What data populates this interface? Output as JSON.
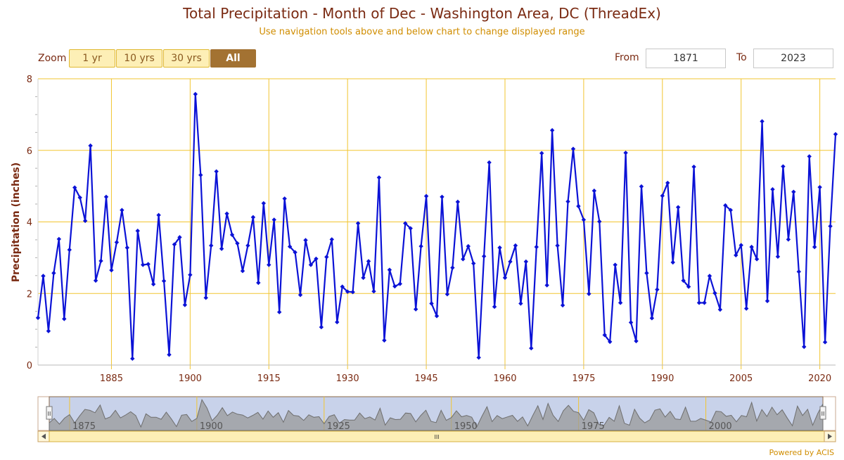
{
  "header": {
    "title": "Total Precipitation - Month of Dec - Washington Area, DC (ThreadEx)",
    "subtitle": "Use navigation tools above and below chart to change displayed range"
  },
  "zoom": {
    "label": "Zoom",
    "buttons": [
      "1 yr",
      "10 yrs",
      "30 yrs",
      "All"
    ],
    "active": "All"
  },
  "range": {
    "from_label": "From",
    "from_value": "1871",
    "to_label": "To",
    "to_value": "2023"
  },
  "navigator": {
    "tick_labels": [
      "1875",
      "1900",
      "1925",
      "1950",
      "1975",
      "2000"
    ],
    "handle_glyph": "II",
    "scroll_glyph": "III"
  },
  "footer": {
    "credit": "Powered by ACIS"
  },
  "colors": {
    "series": "#0b12d6",
    "grid": "#f2c530",
    "axis_text": "#7a2a12",
    "navigator_fill": "#c8d2ea",
    "navigator_area": "#999999"
  },
  "chart_data": {
    "type": "line",
    "title": "Total Precipitation - Month of Dec - Washington Area, DC (ThreadEx)",
    "xlabel": "",
    "ylabel": "Precipitation (inches)",
    "xlim": [
      1871,
      2023
    ],
    "ylim": [
      0,
      8
    ],
    "x_ticks": [
      1885,
      1900,
      1915,
      1930,
      1945,
      1960,
      1975,
      1990,
      2005,
      2020
    ],
    "y_ticks": [
      0,
      2,
      4,
      6,
      8
    ],
    "grid": true,
    "x": [
      1871,
      1872,
      1873,
      1874,
      1875,
      1876,
      1877,
      1878,
      1879,
      1880,
      1881,
      1882,
      1883,
      1884,
      1885,
      1886,
      1887,
      1888,
      1889,
      1890,
      1891,
      1892,
      1893,
      1894,
      1895,
      1896,
      1897,
      1898,
      1899,
      1900,
      1901,
      1902,
      1903,
      1904,
      1905,
      1906,
      1907,
      1908,
      1909,
      1910,
      1911,
      1912,
      1913,
      1914,
      1915,
      1916,
      1917,
      1918,
      1919,
      1920,
      1921,
      1922,
      1923,
      1924,
      1925,
      1926,
      1927,
      1928,
      1929,
      1930,
      1931,
      1932,
      1933,
      1934,
      1935,
      1936,
      1937,
      1938,
      1939,
      1940,
      1941,
      1942,
      1943,
      1944,
      1945,
      1946,
      1947,
      1948,
      1949,
      1950,
      1951,
      1952,
      1953,
      1954,
      1955,
      1956,
      1957,
      1958,
      1959,
      1960,
      1961,
      1962,
      1963,
      1964,
      1965,
      1966,
      1967,
      1968,
      1969,
      1970,
      1971,
      1972,
      1973,
      1974,
      1975,
      1976,
      1977,
      1978,
      1979,
      1980,
      1981,
      1982,
      1983,
      1984,
      1985,
      1986,
      1987,
      1988,
      1989,
      1990,
      1991,
      1992,
      1993,
      1994,
      1995,
      1996,
      1997,
      1998,
      1999,
      2000,
      2001,
      2002,
      2003,
      2004,
      2005,
      2006,
      2007,
      2008,
      2009,
      2010,
      2011,
      2012,
      2013,
      2014,
      2015,
      2016,
      2017,
      2018,
      2019,
      2020,
      2021,
      2022,
      2023
    ],
    "series": [
      {
        "values": [
          1.32,
          2.49,
          0.95,
          2.57,
          3.52,
          1.29,
          3.22,
          4.96,
          4.68,
          4.03,
          6.13,
          2.36,
          2.91,
          4.7,
          2.65,
          3.43,
          4.33,
          3.28,
          0.18,
          3.75,
          2.8,
          2.82,
          2.26,
          4.19,
          2.35,
          0.29,
          3.37,
          3.57,
          1.68,
          2.52,
          7.57,
          5.31,
          1.88,
          3.34,
          5.41,
          3.25,
          4.23,
          3.64,
          3.4,
          2.63,
          3.34,
          4.13,
          2.3,
          4.52,
          2.8,
          4.06,
          1.48,
          4.65,
          3.31,
          3.15,
          1.96,
          3.49,
          2.8,
          2.97,
          1.06,
          3.02,
          3.51,
          1.2,
          2.19,
          2.05,
          2.04,
          3.96,
          2.44,
          2.9,
          2.06,
          5.24,
          0.69,
          2.66,
          2.2,
          2.27,
          3.96,
          3.82,
          1.56,
          3.32,
          4.72,
          1.72,
          1.37,
          4.7,
          1.98,
          2.72,
          4.56,
          2.96,
          3.32,
          2.84,
          0.21,
          3.04,
          5.66,
          1.63,
          3.28,
          2.44,
          2.89,
          3.34,
          1.72,
          2.89,
          0.47,
          3.3,
          5.92,
          2.23,
          6.56,
          3.34,
          1.67,
          4.57,
          6.04,
          4.44,
          4.06,
          1.99,
          4.87,
          4.01,
          0.84,
          0.65,
          2.8,
          1.74,
          5.93,
          1.19,
          0.67,
          4.99,
          2.57,
          1.31,
          2.11,
          4.73,
          5.09,
          2.87,
          4.41,
          2.36,
          2.19,
          5.54,
          1.74,
          1.74,
          2.49,
          2.01,
          1.55,
          4.46,
          4.33,
          3.07,
          3.35,
          1.58,
          3.3,
          2.96,
          6.81,
          1.79,
          4.91,
          3.03,
          5.55,
          3.51,
          4.84,
          2.61,
          0.51,
          5.83,
          3.3,
          4.97,
          0.64,
          3.88,
          6.45
        ]
      }
    ]
  }
}
